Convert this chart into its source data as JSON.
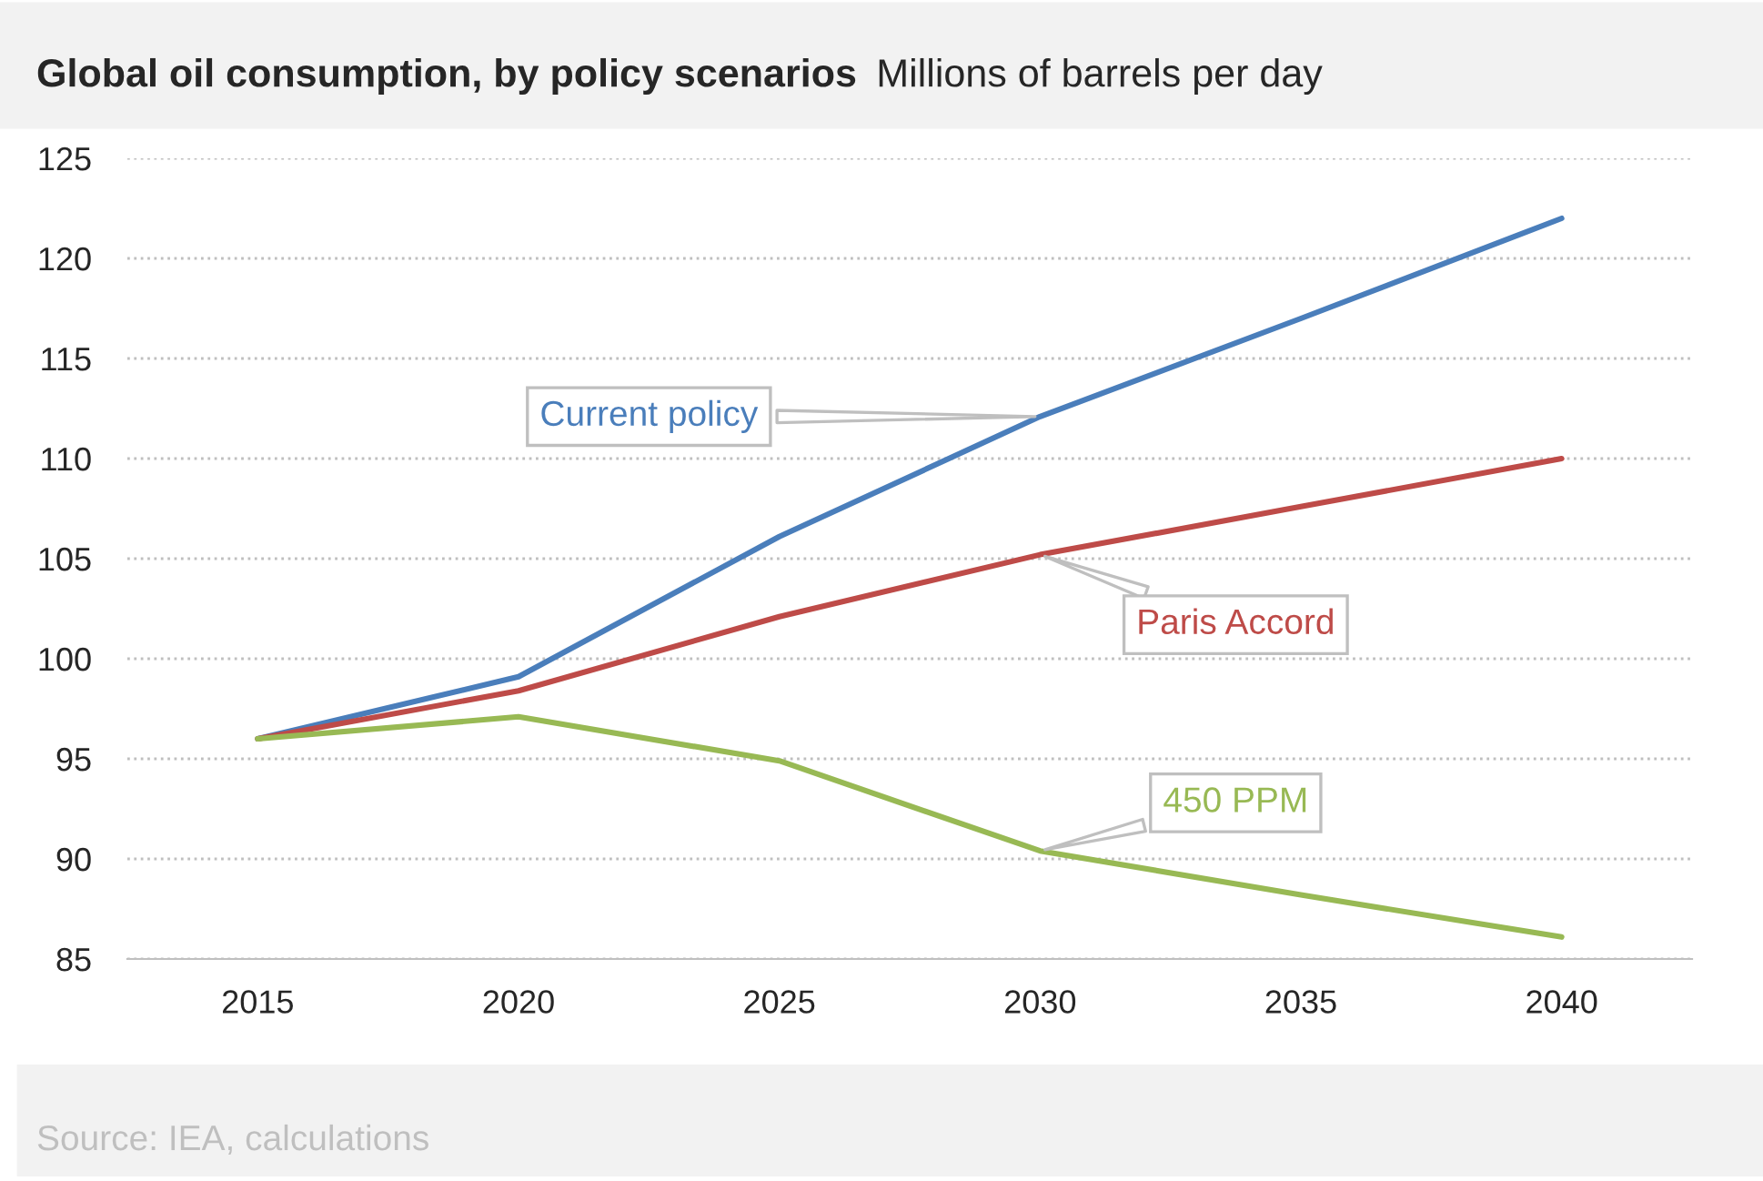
{
  "chart_data": {
    "type": "line",
    "title": "Global oil consumption, by policy scenarios",
    "subtitle": "Millions of barrels per day",
    "categories": [
      "2015",
      "2020",
      "2025",
      "2030",
      "2035",
      "2040"
    ],
    "series": [
      {
        "name": "Current policy",
        "color": "#4a7ebb",
        "values": [
          96,
          99.1,
          106.1,
          112.1,
          117,
          122
        ]
      },
      {
        "name": "Paris Accord",
        "color": "#be4b48",
        "values": [
          96,
          98.4,
          102.1,
          105.2,
          107.6,
          110
        ]
      },
      {
        "name": "450 PPM",
        "color": "#98b954",
        "values": [
          96,
          97.1,
          94.9,
          90.4,
          88.2,
          86.1
        ]
      }
    ],
    "ylim": [
      85,
      125
    ],
    "yticks": [
      85,
      90,
      95,
      100,
      105,
      110,
      115,
      120,
      125
    ],
    "grid": "y",
    "legend": false,
    "annotations": [
      "Source: IEA, calculations"
    ]
  }
}
